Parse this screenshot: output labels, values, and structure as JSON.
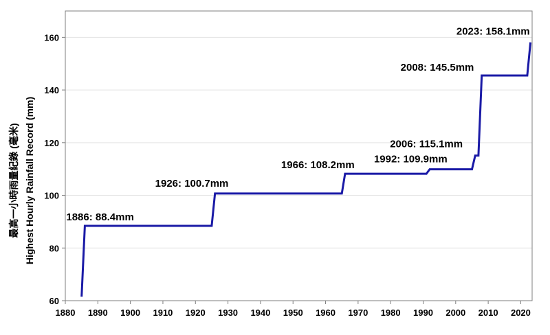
{
  "chart_data": {
    "type": "line",
    "title": "",
    "xlabel": "",
    "ylabel": "Highest Hourly Rainfall Record (mm)",
    "ylabel_zh": "最高一小時雨量紀錄 (毫米)",
    "xlim": [
      1880,
      2023
    ],
    "ylim": [
      60,
      170
    ],
    "xticks": [
      1880,
      1890,
      1900,
      1910,
      1920,
      1930,
      1940,
      1950,
      1960,
      1970,
      1980,
      1990,
      2000,
      2010,
      2020
    ],
    "yticks": [
      60,
      80,
      100,
      120,
      140,
      160
    ],
    "grid": "horizontal",
    "series": [
      {
        "color": "#1a1aa6",
        "x": [
          1885,
          1886,
          1925,
          1926,
          1965,
          1966,
          1991,
          1992,
          2005,
          2006,
          2007,
          2008,
          2022,
          2023
        ],
        "y": [
          61.5,
          88.4,
          88.4,
          100.7,
          100.7,
          108.2,
          108.2,
          109.9,
          109.9,
          115.1,
          115.1,
          145.5,
          145.5,
          158.1
        ]
      }
    ],
    "annotations": [
      {
        "text": "1886: 88.4mm",
        "x": 1886,
        "y": 88.4
      },
      {
        "text": "1926: 100.7mm",
        "x": 1926,
        "y": 100.7
      },
      {
        "text": "1966: 108.2mm",
        "x": 1966,
        "y": 108.2
      },
      {
        "text": "1992: 109.9mm",
        "x": 1992,
        "y": 109.9
      },
      {
        "text": "2006: 115.1mm",
        "x": 2006,
        "y": 115.1
      },
      {
        "text": "2008: 145.5mm",
        "x": 2008,
        "y": 145.5
      },
      {
        "text": "2023: 158.1mm",
        "x": 2023,
        "y": 158.1
      }
    ]
  }
}
